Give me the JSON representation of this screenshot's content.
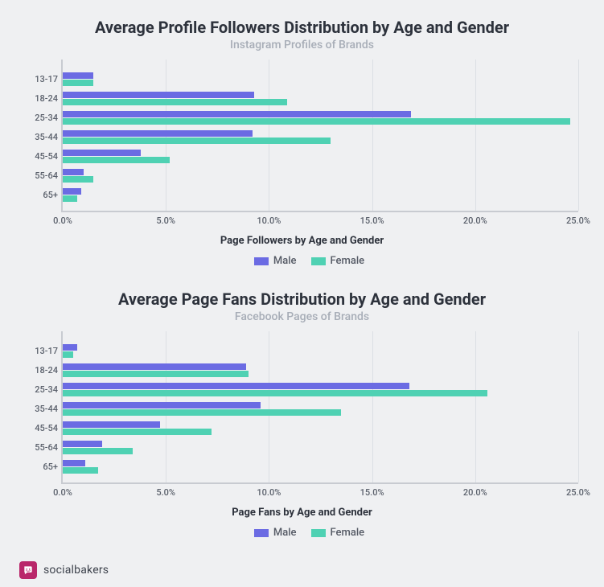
{
  "background_color": "#eff0f2",
  "colors": {
    "male": "#6b6be3",
    "female": "#4fd1b3",
    "axis": "#c8cbd1",
    "grid": "#dcdfe4"
  },
  "xaxis": {
    "min": 0,
    "max": 25,
    "step": 5,
    "format_suffix": "%",
    "decimals": 1
  },
  "charts": [
    {
      "title": "Average Profile Followers Distribution by Age and Gender",
      "subtitle": "Instagram Profiles of Brands",
      "xlabel": "Page Followers by Age and Gender",
      "legend": {
        "male": "Male",
        "female": "Female"
      },
      "categories": [
        "13-17",
        "18-24",
        "25-34",
        "35-44",
        "45-54",
        "55-64",
        "65+"
      ],
      "series": {
        "male": [
          1.5,
          9.3,
          16.9,
          9.2,
          3.8,
          1.0,
          0.9
        ],
        "female": [
          1.5,
          10.9,
          24.6,
          13.0,
          5.2,
          1.5,
          0.7
        ]
      }
    },
    {
      "title": "Average Page Fans Distribution by Age and Gender",
      "subtitle": "Facebook Pages of Brands",
      "xlabel": "Page Fans by Age and Gender",
      "legend": {
        "male": "Male",
        "female": "Female"
      },
      "categories": [
        "13-17",
        "18-24",
        "25-34",
        "35-44",
        "45-54",
        "55-64",
        "65+"
      ],
      "series": {
        "male": [
          0.7,
          8.9,
          16.8,
          9.6,
          4.7,
          1.9,
          1.1
        ],
        "female": [
          0.5,
          9.0,
          20.6,
          13.5,
          7.2,
          3.4,
          1.7
        ]
      }
    }
  ],
  "footer": {
    "brand": "socialbakers"
  }
}
